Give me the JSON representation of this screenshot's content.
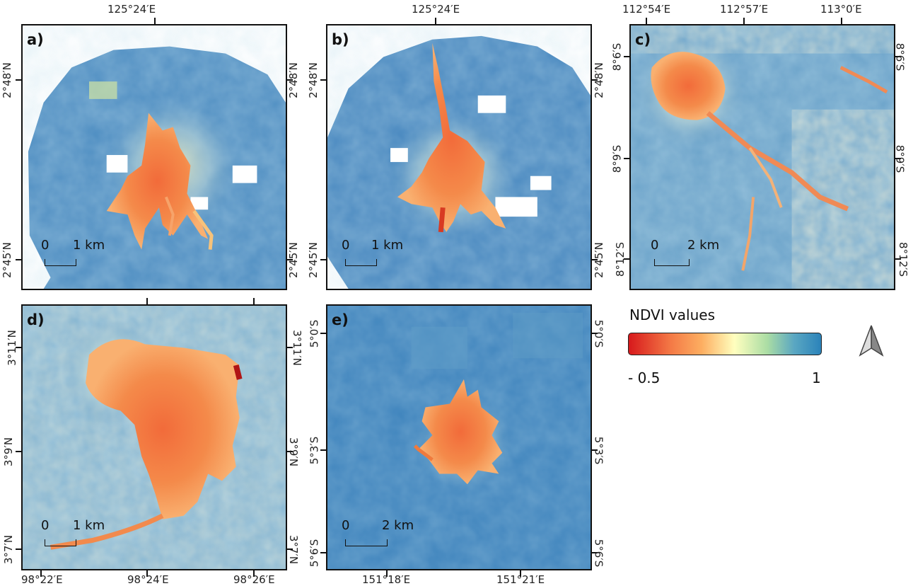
{
  "panels": {
    "a": {
      "label": "a)",
      "scale_zero": "0",
      "scale_dist": "1 km",
      "top_lon": "125°24′E",
      "lat_top": "2°48′N",
      "lat_bottom": "2°45′N"
    },
    "b": {
      "label": "b)",
      "scale_zero": "0",
      "scale_dist": "1 km",
      "top_lon": "125°24′E",
      "lat_top": "2°48′N",
      "lat_bottom": "2°45′N"
    },
    "c": {
      "label": "c)",
      "scale_zero": "0",
      "scale_dist": "2 km",
      "top_lons": [
        "112°54′E",
        "112°57′E",
        "113°0′E"
      ],
      "lats": [
        "8°6′S",
        "8°9′S",
        "8°12′S"
      ]
    },
    "d": {
      "label": "d)",
      "scale_zero": "0",
      "scale_dist": "1 km",
      "bottom_lons": [
        "98°22′E",
        "98°24′E",
        "98°26′E"
      ],
      "lats": [
        "3°11′N",
        "3°9′N",
        "3°7′N"
      ]
    },
    "e": {
      "label": "e)",
      "scale_zero": "0",
      "scale_dist": "2 km",
      "bottom_lons": [
        "151°18′E",
        "151°21′E"
      ],
      "lats": [
        "5°0′S",
        "5°3′S",
        "5°6′S"
      ]
    }
  },
  "legend": {
    "title": "NDVI values",
    "min": "- 0.5",
    "max": "1",
    "colors": [
      "#d7191c",
      "#fdae61",
      "#ffffbf",
      "#abdda4",
      "#2b83ba"
    ]
  },
  "north_arrow": {
    "icon": "north-arrow-icon"
  }
}
